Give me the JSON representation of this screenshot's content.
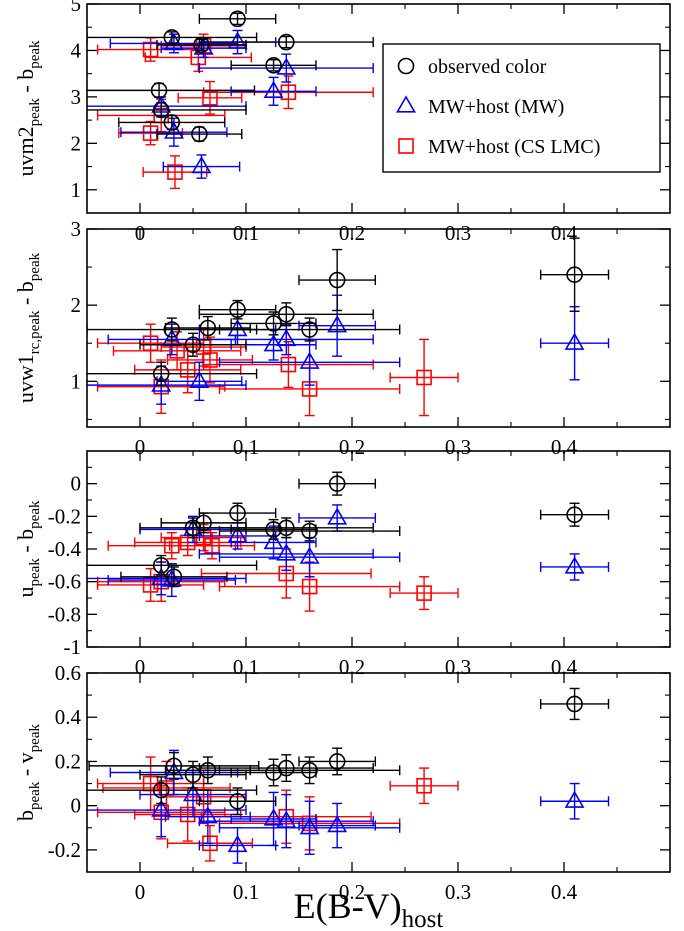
{
  "chart_data": [
    {
      "type": "scatter",
      "ylabel": "uvm2",
      "ylabel_sub": "peak",
      "ylabel_tail": " - b",
      "ylabel_sub2": "peak",
      "xlim": [
        -0.05,
        0.5
      ],
      "ylim": [
        0.5,
        5
      ],
      "xticks": [
        0,
        0.1,
        0.2,
        0.3,
        0.4
      ],
      "xtick_labels": [
        "0",
        "0.1",
        "0.2",
        "0.3",
        "0.4"
      ],
      "yticks": [
        1,
        2,
        3,
        4,
        5
      ],
      "ytick_labels": [
        "1",
        "2",
        "3",
        "4",
        "5"
      ],
      "legend": {
        "placement": "top-right",
        "entries": [
          {
            "label": "observed color",
            "marker": "circle",
            "color": "#000000"
          },
          {
            "label": "MW+host (MW)",
            "marker": "triangle",
            "color": "#0000ff"
          },
          {
            "label": "MW+host (CS LMC)",
            "marker": "square",
            "color": "#ff0000"
          }
        ]
      },
      "series": [
        {
          "name": "observed color",
          "marker": "circle",
          "color": "#000000",
          "points": [
            {
              "x": 0.092,
              "y": 4.68,
              "xerr": 0.036,
              "yerr": 0.12
            },
            {
              "x": 0.03,
              "y": 4.28,
              "xerr": 0.08,
              "yerr": 0.12
            },
            {
              "x": 0.138,
              "y": 4.18,
              "xerr": 0.082,
              "yerr": 0.12
            },
            {
              "x": 0.058,
              "y": 4.12,
              "xerr": 0.042,
              "yerr": 0.12
            },
            {
              "x": 0.126,
              "y": 3.68,
              "xerr": 0.04,
              "yerr": 0.12
            },
            {
              "x": 0.018,
              "y": 3.14,
              "xerr": 0.09,
              "yerr": 0.15
            },
            {
              "x": 0.02,
              "y": 2.72,
              "xerr": 0.08,
              "yerr": 0.15
            },
            {
              "x": 0.03,
              "y": 2.45,
              "xerr": 0.05,
              "yerr": 0.15
            },
            {
              "x": 0.056,
              "y": 2.2,
              "xerr": 0.04,
              "yerr": 0.15
            }
          ]
        },
        {
          "name": "MW+host (MW)",
          "marker": "triangle",
          "color": "#0000ff",
          "points": [
            {
              "x": 0.092,
              "y": 4.18,
              "xerr": 0.036,
              "yerr": 0.25
            },
            {
              "x": 0.032,
              "y": 4.15,
              "xerr": 0.06,
              "yerr": 0.2
            },
            {
              "x": 0.06,
              "y": 4.05,
              "xerr": 0.04,
              "yerr": 0.2
            },
            {
              "x": 0.138,
              "y": 3.62,
              "xerr": 0.082,
              "yerr": 0.3
            },
            {
              "x": 0.126,
              "y": 3.12,
              "xerr": 0.04,
              "yerr": 0.3
            },
            {
              "x": 0.02,
              "y": 2.8,
              "xerr": 0.08,
              "yerr": 0.2
            },
            {
              "x": 0.032,
              "y": 2.24,
              "xerr": 0.05,
              "yerr": 0.3
            },
            {
              "x": 0.058,
              "y": 1.5,
              "xerr": 0.036,
              "yerr": 0.25
            }
          ]
        },
        {
          "name": "MW+host (CS LMC)",
          "marker": "square",
          "color": "#ff0000",
          "points": [
            {
              "x": 0.06,
              "y": 4.1,
              "xerr": 0.04,
              "yerr": 0.25
            },
            {
              "x": 0.01,
              "y": 4.02,
              "xerr": 0.05,
              "yerr": 0.25
            },
            {
              "x": 0.055,
              "y": 3.85,
              "xerr": 0.05,
              "yerr": 0.3
            },
            {
              "x": 0.066,
              "y": 2.98,
              "xerr": 0.03,
              "yerr": 0.35
            },
            {
              "x": 0.14,
              "y": 3.1,
              "xerr": 0.08,
              "yerr": 0.35
            },
            {
              "x": 0.02,
              "y": 2.6,
              "xerr": 0.06,
              "yerr": 0.35
            },
            {
              "x": 0.01,
              "y": 2.22,
              "xerr": 0.03,
              "yerr": 0.25
            },
            {
              "x": 0.033,
              "y": 1.38,
              "xerr": 0.03,
              "yerr": 0.35
            }
          ]
        }
      ]
    },
    {
      "type": "scatter",
      "ylabel": "uvw1",
      "ylabel_sub": "rc,peak",
      "ylabel_tail": " - b",
      "ylabel_sub2": "peak",
      "xlim": [
        -0.05,
        0.5
      ],
      "ylim": [
        0.4,
        3
      ],
      "xticks": [
        0,
        0.1,
        0.2,
        0.3,
        0.4
      ],
      "xtick_labels": [
        "0",
        "0.1",
        "0.2",
        "0.3",
        "0.4"
      ],
      "yticks": [
        1,
        2,
        3
      ],
      "ytick_labels": [
        "1",
        "2",
        "3"
      ],
      "series": [
        {
          "name": "observed color",
          "marker": "circle",
          "color": "#000000",
          "points": [
            {
              "x": 0.41,
              "y": 2.4,
              "xerr": 0.032,
              "yerr": 0.48
            },
            {
              "x": 0.186,
              "y": 2.33,
              "xerr": 0.036,
              "yerr": 0.4
            },
            {
              "x": 0.092,
              "y": 1.94,
              "xerr": 0.036,
              "yerr": 0.12
            },
            {
              "x": 0.138,
              "y": 1.88,
              "xerr": 0.082,
              "yerr": 0.15
            },
            {
              "x": 0.126,
              "y": 1.76,
              "xerr": 0.04,
              "yerr": 0.15
            },
            {
              "x": 0.03,
              "y": 1.68,
              "xerr": 0.08,
              "yerr": 0.15
            },
            {
              "x": 0.064,
              "y": 1.7,
              "xerr": 0.04,
              "yerr": 0.15
            },
            {
              "x": 0.16,
              "y": 1.68,
              "xerr": 0.085,
              "yerr": 0.15
            },
            {
              "x": 0.05,
              "y": 1.48,
              "xerr": 0.05,
              "yerr": 0.15
            },
            {
              "x": 0.02,
              "y": 1.1,
              "xerr": 0.09,
              "yerr": 0.15
            }
          ]
        },
        {
          "name": "MW+host (MW)",
          "marker": "triangle",
          "color": "#0000ff",
          "points": [
            {
              "x": 0.186,
              "y": 1.73,
              "xerr": 0.036,
              "yerr": 0.4
            },
            {
              "x": 0.092,
              "y": 1.68,
              "xerr": 0.036,
              "yerr": 0.2
            },
            {
              "x": 0.138,
              "y": 1.55,
              "xerr": 0.082,
              "yerr": 0.2
            },
            {
              "x": 0.03,
              "y": 1.55,
              "xerr": 0.06,
              "yerr": 0.2
            },
            {
              "x": 0.41,
              "y": 1.5,
              "xerr": 0.032,
              "yerr": 0.48
            },
            {
              "x": 0.126,
              "y": 1.48,
              "xerr": 0.04,
              "yerr": 0.2
            },
            {
              "x": 0.16,
              "y": 1.25,
              "xerr": 0.085,
              "yerr": 0.3
            },
            {
              "x": 0.056,
              "y": 1.0,
              "xerr": 0.04,
              "yerr": 0.25
            },
            {
              "x": 0.02,
              "y": 0.95,
              "xerr": 0.08,
              "yerr": 0.25
            }
          ]
        },
        {
          "name": "MW+host (CS LMC)",
          "marker": "square",
          "color": "#ff0000",
          "points": [
            {
              "x": 0.01,
              "y": 1.5,
              "xerr": 0.05,
              "yerr": 0.25
            },
            {
              "x": 0.06,
              "y": 1.45,
              "xerr": 0.04,
              "yerr": 0.25
            },
            {
              "x": 0.035,
              "y": 1.4,
              "xerr": 0.06,
              "yerr": 0.25
            },
            {
              "x": 0.066,
              "y": 1.28,
              "xerr": 0.04,
              "yerr": 0.3
            },
            {
              "x": 0.14,
              "y": 1.22,
              "xerr": 0.08,
              "yerr": 0.3
            },
            {
              "x": 0.045,
              "y": 1.15,
              "xerr": 0.05,
              "yerr": 0.3
            },
            {
              "x": 0.268,
              "y": 1.05,
              "xerr": 0.032,
              "yerr": 0.5
            },
            {
              "x": 0.02,
              "y": 0.93,
              "xerr": 0.06,
              "yerr": 0.35
            },
            {
              "x": 0.16,
              "y": 0.9,
              "xerr": 0.085,
              "yerr": 0.35
            }
          ]
        }
      ]
    },
    {
      "type": "scatter",
      "ylabel": "u",
      "ylabel_sub": "peak",
      "ylabel_tail": " - b",
      "ylabel_sub2": "peak",
      "xlim": [
        -0.05,
        0.5
      ],
      "ylim": [
        -1,
        0.2
      ],
      "xticks": [
        0,
        0.1,
        0.2,
        0.3,
        0.4
      ],
      "xtick_labels": [
        "0",
        "0.1",
        "0.2",
        "0.3",
        "0.4"
      ],
      "yticks": [
        -1,
        -0.8,
        -0.6,
        -0.4,
        -0.2,
        0
      ],
      "ytick_labels": [
        "-1",
        "-0.8",
        "-0.6",
        "-0.4",
        "-0.2",
        "0"
      ],
      "series": [
        {
          "name": "observed color",
          "marker": "circle",
          "color": "#000000",
          "points": [
            {
              "x": 0.186,
              "y": 0.0,
              "xerr": 0.036,
              "yerr": 0.07
            },
            {
              "x": 0.092,
              "y": -0.18,
              "xerr": 0.036,
              "yerr": 0.06
            },
            {
              "x": 0.41,
              "y": -0.19,
              "xerr": 0.032,
              "yerr": 0.07
            },
            {
              "x": 0.06,
              "y": -0.24,
              "xerr": 0.04,
              "yerr": 0.06
            },
            {
              "x": 0.05,
              "y": -0.27,
              "xerr": 0.05,
              "yerr": 0.06
            },
            {
              "x": 0.126,
              "y": -0.28,
              "xerr": 0.04,
              "yerr": 0.06
            },
            {
              "x": 0.138,
              "y": -0.27,
              "xerr": 0.082,
              "yerr": 0.06
            },
            {
              "x": 0.16,
              "y": -0.29,
              "xerr": 0.085,
              "yerr": 0.06
            },
            {
              "x": 0.02,
              "y": -0.5,
              "xerr": 0.09,
              "yerr": 0.06
            },
            {
              "x": 0.032,
              "y": -0.57,
              "xerr": 0.05,
              "yerr": 0.06
            }
          ]
        },
        {
          "name": "MW+host (MW)",
          "marker": "triangle",
          "color": "#0000ff",
          "points": [
            {
              "x": 0.186,
              "y": -0.21,
              "xerr": 0.036,
              "yerr": 0.08
            },
            {
              "x": 0.05,
              "y": -0.28,
              "xerr": 0.05,
              "yerr": 0.08
            },
            {
              "x": 0.092,
              "y": -0.32,
              "xerr": 0.036,
              "yerr": 0.08
            },
            {
              "x": 0.126,
              "y": -0.36,
              "xerr": 0.04,
              "yerr": 0.1
            },
            {
              "x": 0.138,
              "y": -0.43,
              "xerr": 0.082,
              "yerr": 0.1
            },
            {
              "x": 0.16,
              "y": -0.45,
              "xerr": 0.085,
              "yerr": 0.12
            },
            {
              "x": 0.41,
              "y": -0.51,
              "xerr": 0.032,
              "yerr": 0.08
            },
            {
              "x": 0.02,
              "y": -0.58,
              "xerr": 0.08,
              "yerr": 0.1
            },
            {
              "x": 0.03,
              "y": -0.59,
              "xerr": 0.06,
              "yerr": 0.1
            }
          ]
        },
        {
          "name": "MW+host (CS LMC)",
          "marker": "square",
          "color": "#ff0000",
          "points": [
            {
              "x": 0.03,
              "y": -0.38,
              "xerr": 0.06,
              "yerr": 0.08
            },
            {
              "x": 0.045,
              "y": -0.36,
              "xerr": 0.05,
              "yerr": 0.08
            },
            {
              "x": 0.06,
              "y": -0.33,
              "xerr": 0.04,
              "yerr": 0.08
            },
            {
              "x": 0.068,
              "y": -0.38,
              "xerr": 0.04,
              "yerr": 0.08
            },
            {
              "x": 0.138,
              "y": -0.55,
              "xerr": 0.08,
              "yerr": 0.15
            },
            {
              "x": 0.16,
              "y": -0.63,
              "xerr": 0.085,
              "yerr": 0.15
            },
            {
              "x": 0.02,
              "y": -0.6,
              "xerr": 0.06,
              "yerr": 0.12
            },
            {
              "x": 0.01,
              "y": -0.62,
              "xerr": 0.05,
              "yerr": 0.1
            },
            {
              "x": 0.268,
              "y": -0.67,
              "xerr": 0.032,
              "yerr": 0.1
            }
          ]
        }
      ]
    },
    {
      "type": "scatter",
      "ylabel": "b",
      "ylabel_sub": "peak",
      "ylabel_tail": " - v",
      "ylabel_sub2": "peak",
      "xlabel": "E(B-V)",
      "xlabel_sub": "host",
      "xlim": [
        -0.05,
        0.5
      ],
      "ylim": [
        -0.3,
        0.6
      ],
      "xticks": [
        0,
        0.1,
        0.2,
        0.3,
        0.4
      ],
      "xtick_labels": [
        "0",
        "0.1",
        "0.2",
        "0.3",
        "0.4"
      ],
      "yticks": [
        -0.2,
        0,
        0.2,
        0.4,
        0.6
      ],
      "ytick_labels": [
        "-0.2",
        "0",
        "0.2",
        "0.4",
        "0.6"
      ],
      "series": [
        {
          "name": "observed color",
          "marker": "circle",
          "color": "#000000",
          "points": [
            {
              "x": 0.41,
              "y": 0.46,
              "xerr": 0.032,
              "yerr": 0.07
            },
            {
              "x": 0.186,
              "y": 0.2,
              "xerr": 0.036,
              "yerr": 0.06
            },
            {
              "x": 0.032,
              "y": 0.18,
              "xerr": 0.08,
              "yerr": 0.06
            },
            {
              "x": 0.138,
              "y": 0.17,
              "xerr": 0.082,
              "yerr": 0.06
            },
            {
              "x": 0.16,
              "y": 0.16,
              "xerr": 0.085,
              "yerr": 0.06
            },
            {
              "x": 0.064,
              "y": 0.16,
              "xerr": 0.04,
              "yerr": 0.06
            },
            {
              "x": 0.126,
              "y": 0.15,
              "xerr": 0.04,
              "yerr": 0.06
            },
            {
              "x": 0.05,
              "y": 0.14,
              "xerr": 0.05,
              "yerr": 0.06
            },
            {
              "x": 0.02,
              "y": 0.07,
              "xerr": 0.09,
              "yerr": 0.06
            },
            {
              "x": 0.092,
              "y": 0.02,
              "xerr": 0.036,
              "yerr": 0.06
            }
          ]
        },
        {
          "name": "MW+host (MW)",
          "marker": "triangle",
          "color": "#0000ff",
          "points": [
            {
              "x": 0.032,
              "y": 0.15,
              "xerr": 0.06,
              "yerr": 0.1
            },
            {
              "x": 0.05,
              "y": 0.05,
              "xerr": 0.05,
              "yerr": 0.1
            },
            {
              "x": 0.41,
              "y": 0.02,
              "xerr": 0.032,
              "yerr": 0.08
            },
            {
              "x": 0.02,
              "y": -0.02,
              "xerr": 0.08,
              "yerr": 0.12
            },
            {
              "x": 0.064,
              "y": -0.05,
              "xerr": 0.04,
              "yerr": 0.12
            },
            {
              "x": 0.126,
              "y": -0.06,
              "xerr": 0.04,
              "yerr": 0.12
            },
            {
              "x": 0.138,
              "y": -0.07,
              "xerr": 0.082,
              "yerr": 0.12
            },
            {
              "x": 0.186,
              "y": -0.09,
              "xerr": 0.036,
              "yerr": 0.1
            },
            {
              "x": 0.16,
              "y": -0.1,
              "xerr": 0.085,
              "yerr": 0.12
            },
            {
              "x": 0.092,
              "y": -0.18,
              "xerr": 0.036,
              "yerr": 0.08
            }
          ]
        },
        {
          "name": "MW+host (CS LMC)",
          "marker": "square",
          "color": "#ff0000",
          "points": [
            {
              "x": 0.01,
              "y": 0.1,
              "xerr": 0.05,
              "yerr": 0.12
            },
            {
              "x": 0.025,
              "y": 0.08,
              "xerr": 0.06,
              "yerr": 0.12
            },
            {
              "x": 0.06,
              "y": 0.04,
              "xerr": 0.04,
              "yerr": 0.12
            },
            {
              "x": 0.268,
              "y": 0.09,
              "xerr": 0.032,
              "yerr": 0.08
            },
            {
              "x": 0.045,
              "y": -0.04,
              "xerr": 0.05,
              "yerr": 0.12
            },
            {
              "x": 0.02,
              "y": -0.03,
              "xerr": 0.06,
              "yerr": 0.12
            },
            {
              "x": 0.138,
              "y": -0.05,
              "xerr": 0.08,
              "yerr": 0.12
            },
            {
              "x": 0.16,
              "y": -0.08,
              "xerr": 0.085,
              "yerr": 0.12
            },
            {
              "x": 0.066,
              "y": -0.17,
              "xerr": 0.04,
              "yerr": 0.08
            }
          ]
        }
      ]
    }
  ]
}
